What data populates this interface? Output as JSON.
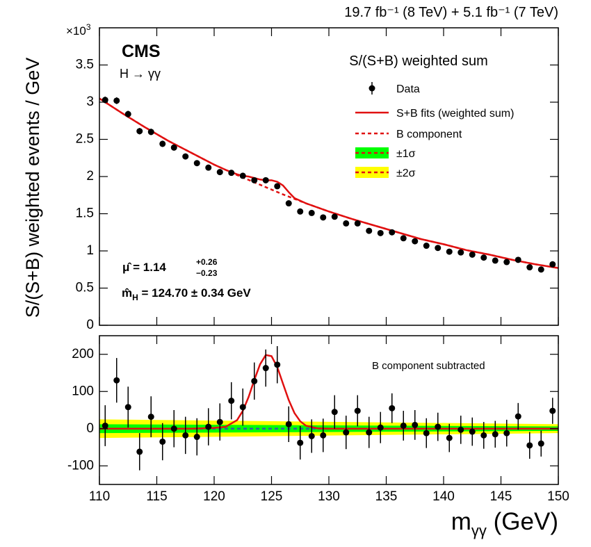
{
  "chart_data": [
    {
      "type": "scatter",
      "header": "19.7 fb⁻¹ (8 TeV) + 5.1 fb⁻¹ (7 TeV)",
      "experiment": "CMS",
      "process": "H → γγ",
      "ylabel": "S/(S+B) weighted events / GeV",
      "y_multiplier_base": "×10",
      "y_multiplier_exp": "3",
      "legend_title": "S/(S+B) weighted sum",
      "mu_label": "μ̂  = 1.14",
      "mu_up": "+0.26",
      "mu_down": "−0.23",
      "mh_symbol": "m̂",
      "mh_sub": "H",
      "mh_value": " = 124.70 ± 0.34 GeV",
      "xlim": [
        110,
        150
      ],
      "xticks": [
        110,
        115,
        120,
        125,
        130,
        135,
        140,
        145,
        150
      ],
      "ylim": [
        0,
        4
      ],
      "yticks": [
        0,
        0.5,
        1,
        1.5,
        2,
        2.5,
        3,
        3.5
      ],
      "series": [
        {
          "name": "Data",
          "color": "#000000",
          "x": [
            110.5,
            111.5,
            112.5,
            113.5,
            114.5,
            115.5,
            116.5,
            117.5,
            118.5,
            119.5,
            120.5,
            121.5,
            122.5,
            123.5,
            124.5,
            125.5,
            126.5,
            127.5,
            128.5,
            129.5,
            130.5,
            131.5,
            132.5,
            133.5,
            134.5,
            135.5,
            136.5,
            137.5,
            138.5,
            139.5,
            140.5,
            141.5,
            142.5,
            143.5,
            144.5,
            145.5,
            146.5,
            147.5,
            148.5,
            149.5
          ],
          "values": [
            3.03,
            3.02,
            2.84,
            2.61,
            2.6,
            2.44,
            2.39,
            2.27,
            2.18,
            2.12,
            2.06,
            2.05,
            2.01,
            1.95,
            1.95,
            1.87,
            1.64,
            1.53,
            1.51,
            1.45,
            1.46,
            1.37,
            1.37,
            1.27,
            1.24,
            1.25,
            1.17,
            1.13,
            1.07,
            1.04,
            0.99,
            0.98,
            0.95,
            0.91,
            0.87,
            0.85,
            0.88,
            0.78,
            0.75,
            0.82
          ],
          "errors": [
            0.045,
            0.045,
            0.044,
            0.043,
            0.043,
            0.042,
            0.041,
            0.04,
            0.04,
            0.039,
            0.039,
            0.038,
            0.038,
            0.037,
            0.037,
            0.036,
            0.035,
            0.034,
            0.034,
            0.033,
            0.033,
            0.032,
            0.032,
            0.031,
            0.031,
            0.031,
            0.03,
            0.03,
            0.029,
            0.029,
            0.028,
            0.028,
            0.028,
            0.027,
            0.027,
            0.026,
            0.026,
            0.025,
            0.025,
            0.025
          ]
        },
        {
          "name": "S+B fits (weighted sum)",
          "color": "#e01010",
          "style": "line",
          "x": [
            110,
            112,
            114,
            116,
            118,
            120,
            121,
            122,
            122.5,
            123,
            123.5,
            124,
            124.5,
            125,
            125.5,
            126,
            126.5,
            127,
            128,
            130,
            132,
            134,
            136,
            138,
            140,
            142,
            144,
            146,
            148,
            150
          ],
          "values": [
            3.05,
            2.85,
            2.66,
            2.48,
            2.32,
            2.16,
            2.09,
            2.03,
            2.01,
            2.0,
            1.98,
            1.96,
            1.95,
            1.95,
            1.93,
            1.88,
            1.79,
            1.71,
            1.64,
            1.53,
            1.43,
            1.34,
            1.25,
            1.16,
            1.09,
            1.01,
            0.95,
            0.88,
            0.82,
            0.77
          ]
        },
        {
          "name": "B component",
          "color": "#e01010",
          "style": "dashed",
          "x": [
            110,
            112,
            114,
            116,
            118,
            120,
            122,
            124,
            126,
            128,
            130,
            132,
            134,
            136,
            138,
            140,
            142,
            144,
            146,
            148,
            150
          ],
          "values": [
            3.05,
            2.85,
            2.66,
            2.48,
            2.32,
            2.16,
            2.02,
            1.89,
            1.76,
            1.64,
            1.53,
            1.43,
            1.34,
            1.25,
            1.16,
            1.09,
            1.01,
            0.95,
            0.88,
            0.82,
            0.77
          ]
        }
      ]
    },
    {
      "type": "scatter",
      "annotation": "B component subtracted",
      "xlabel_main": "m",
      "xlabel_sub": "γγ",
      "xlabel_unit": " (GeV)",
      "xlim": [
        110,
        150
      ],
      "xticks": [
        110,
        115,
        120,
        125,
        130,
        135,
        140,
        145,
        150
      ],
      "ylim": [
        -150,
        250
      ],
      "yticks": [
        -100,
        0,
        100,
        200
      ],
      "series": [
        {
          "name": "±2σ",
          "color": "#ffff00",
          "style": "band",
          "x": [
            110,
            150
          ],
          "half_width": [
            25,
            12
          ]
        },
        {
          "name": "±1σ",
          "color": "#00ff00",
          "style": "band",
          "x": [
            110,
            150
          ],
          "half_width": [
            12,
            6
          ]
        },
        {
          "color": "#3060a0",
          "style": "dashed",
          "x": [
            110,
            150
          ],
          "values": [
            0,
            0
          ]
        },
        {
          "color": "#e01010",
          "style": "line",
          "x": [
            110,
            118,
            119,
            120,
            121,
            122,
            122.5,
            123,
            123.5,
            124,
            124.5,
            125,
            125.5,
            126,
            126.5,
            127,
            127.5,
            128,
            129,
            130,
            150
          ],
          "values": [
            0,
            0,
            1,
            2,
            5,
            23,
            48,
            85,
            131,
            173,
            198,
            195,
            166,
            121,
            77,
            42,
            20,
            8,
            1,
            0,
            0
          ]
        },
        {
          "color": "#000000",
          "x": [
            110.5,
            111.5,
            112.5,
            113.5,
            114.5,
            115.5,
            116.5,
            117.5,
            118.5,
            119.5,
            120.5,
            121.5,
            122.5,
            123.5,
            124.5,
            125.5,
            126.5,
            127.5,
            128.5,
            129.5,
            130.5,
            131.5,
            132.5,
            133.5,
            134.5,
            135.5,
            136.5,
            137.5,
            138.5,
            139.5,
            140.5,
            141.5,
            142.5,
            143.5,
            144.5,
            145.5,
            146.5,
            147.5,
            148.5,
            149.5
          ],
          "values": [
            8,
            130,
            58,
            -62,
            32,
            -35,
            0,
            -18,
            -22,
            5,
            18,
            75,
            58,
            128,
            163,
            172,
            12,
            -38,
            -20,
            -18,
            45,
            -10,
            48,
            -10,
            3,
            55,
            8,
            10,
            -12,
            5,
            -25,
            -3,
            -8,
            -18,
            -15,
            -12,
            33,
            -45,
            -40,
            48
          ],
          "errors": [
            55,
            60,
            55,
            50,
            55,
            50,
            50,
            50,
            50,
            50,
            50,
            50,
            50,
            50,
            50,
            50,
            48,
            45,
            45,
            45,
            45,
            45,
            42,
            42,
            42,
            40,
            40,
            40,
            40,
            38,
            38,
            38,
            38,
            36,
            36,
            36,
            36,
            36,
            35,
            35
          ]
        }
      ]
    }
  ]
}
